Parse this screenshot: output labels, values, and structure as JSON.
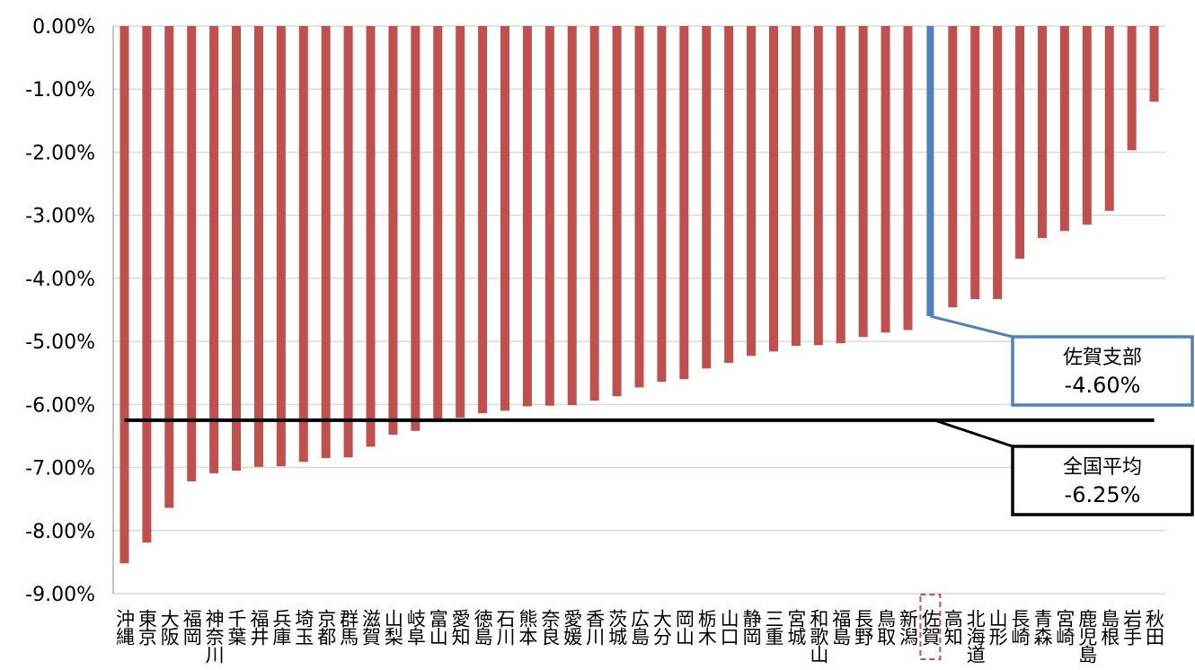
{
  "chart_data": {
    "type": "bar",
    "categories": [
      "沖縄",
      "東京",
      "大阪",
      "福岡",
      "神奈川",
      "千葉",
      "福井",
      "兵庫",
      "埼玉",
      "京都",
      "群馬",
      "滋賀",
      "山梨",
      "岐阜",
      "富山",
      "愛知",
      "徳島",
      "石川",
      "熊本",
      "奈良",
      "愛媛",
      "香川",
      "茨城",
      "広島",
      "大分",
      "岡山",
      "栃木",
      "山口",
      "静岡",
      "三重",
      "宮城",
      "和歌山",
      "福島",
      "長野",
      "鳥取",
      "新潟",
      "佐賀",
      "高知",
      "北海道",
      "山形",
      "長崎",
      "青森",
      "宮崎",
      "鹿児島",
      "島根",
      "岩手",
      "秋田"
    ],
    "values": [
      -8.52,
      -8.19,
      -7.64,
      -7.22,
      -7.09,
      -7.05,
      -6.99,
      -6.98,
      -6.91,
      -6.85,
      -6.84,
      -6.67,
      -6.48,
      -6.42,
      -6.26,
      -6.21,
      -6.14,
      -6.1,
      -6.03,
      -6.02,
      -6.01,
      -5.94,
      -5.87,
      -5.73,
      -5.64,
      -5.6,
      -5.43,
      -5.34,
      -5.23,
      -5.16,
      -5.07,
      -5.06,
      -5.03,
      -4.93,
      -4.86,
      -4.82,
      -4.6,
      -4.46,
      -4.33,
      -4.33,
      -3.69,
      -3.36,
      -3.25,
      -3.15,
      -2.93,
      -1.97,
      -1.2
    ],
    "color": "#c0504d",
    "highlight": {
      "category": "佐賀",
      "color": "#4f81bd"
    },
    "ylim": [
      -9,
      0
    ],
    "yticks": [
      {
        "value": 0,
        "label": "0.00%"
      },
      {
        "value": -1,
        "label": "-1.00%"
      },
      {
        "value": -2,
        "label": "-2.00%"
      },
      {
        "value": -3,
        "label": "-3.00%"
      },
      {
        "value": -4,
        "label": "-4.00%"
      },
      {
        "value": -5,
        "label": "-5.00%"
      },
      {
        "value": -6,
        "label": "-6.00%"
      },
      {
        "value": -7,
        "label": "-7.00%"
      },
      {
        "value": -8,
        "label": "-8.00%"
      },
      {
        "value": -9,
        "label": "-9.00%"
      }
    ],
    "grid": true,
    "annotations": [
      {
        "label": "佐賀支部",
        "value": -4.6,
        "value_label": "-4.60%",
        "color": "#4f81bd"
      },
      {
        "label": "全国平均",
        "value": -6.25,
        "value_label": "-6.25%",
        "color": "#000000"
      }
    ]
  }
}
